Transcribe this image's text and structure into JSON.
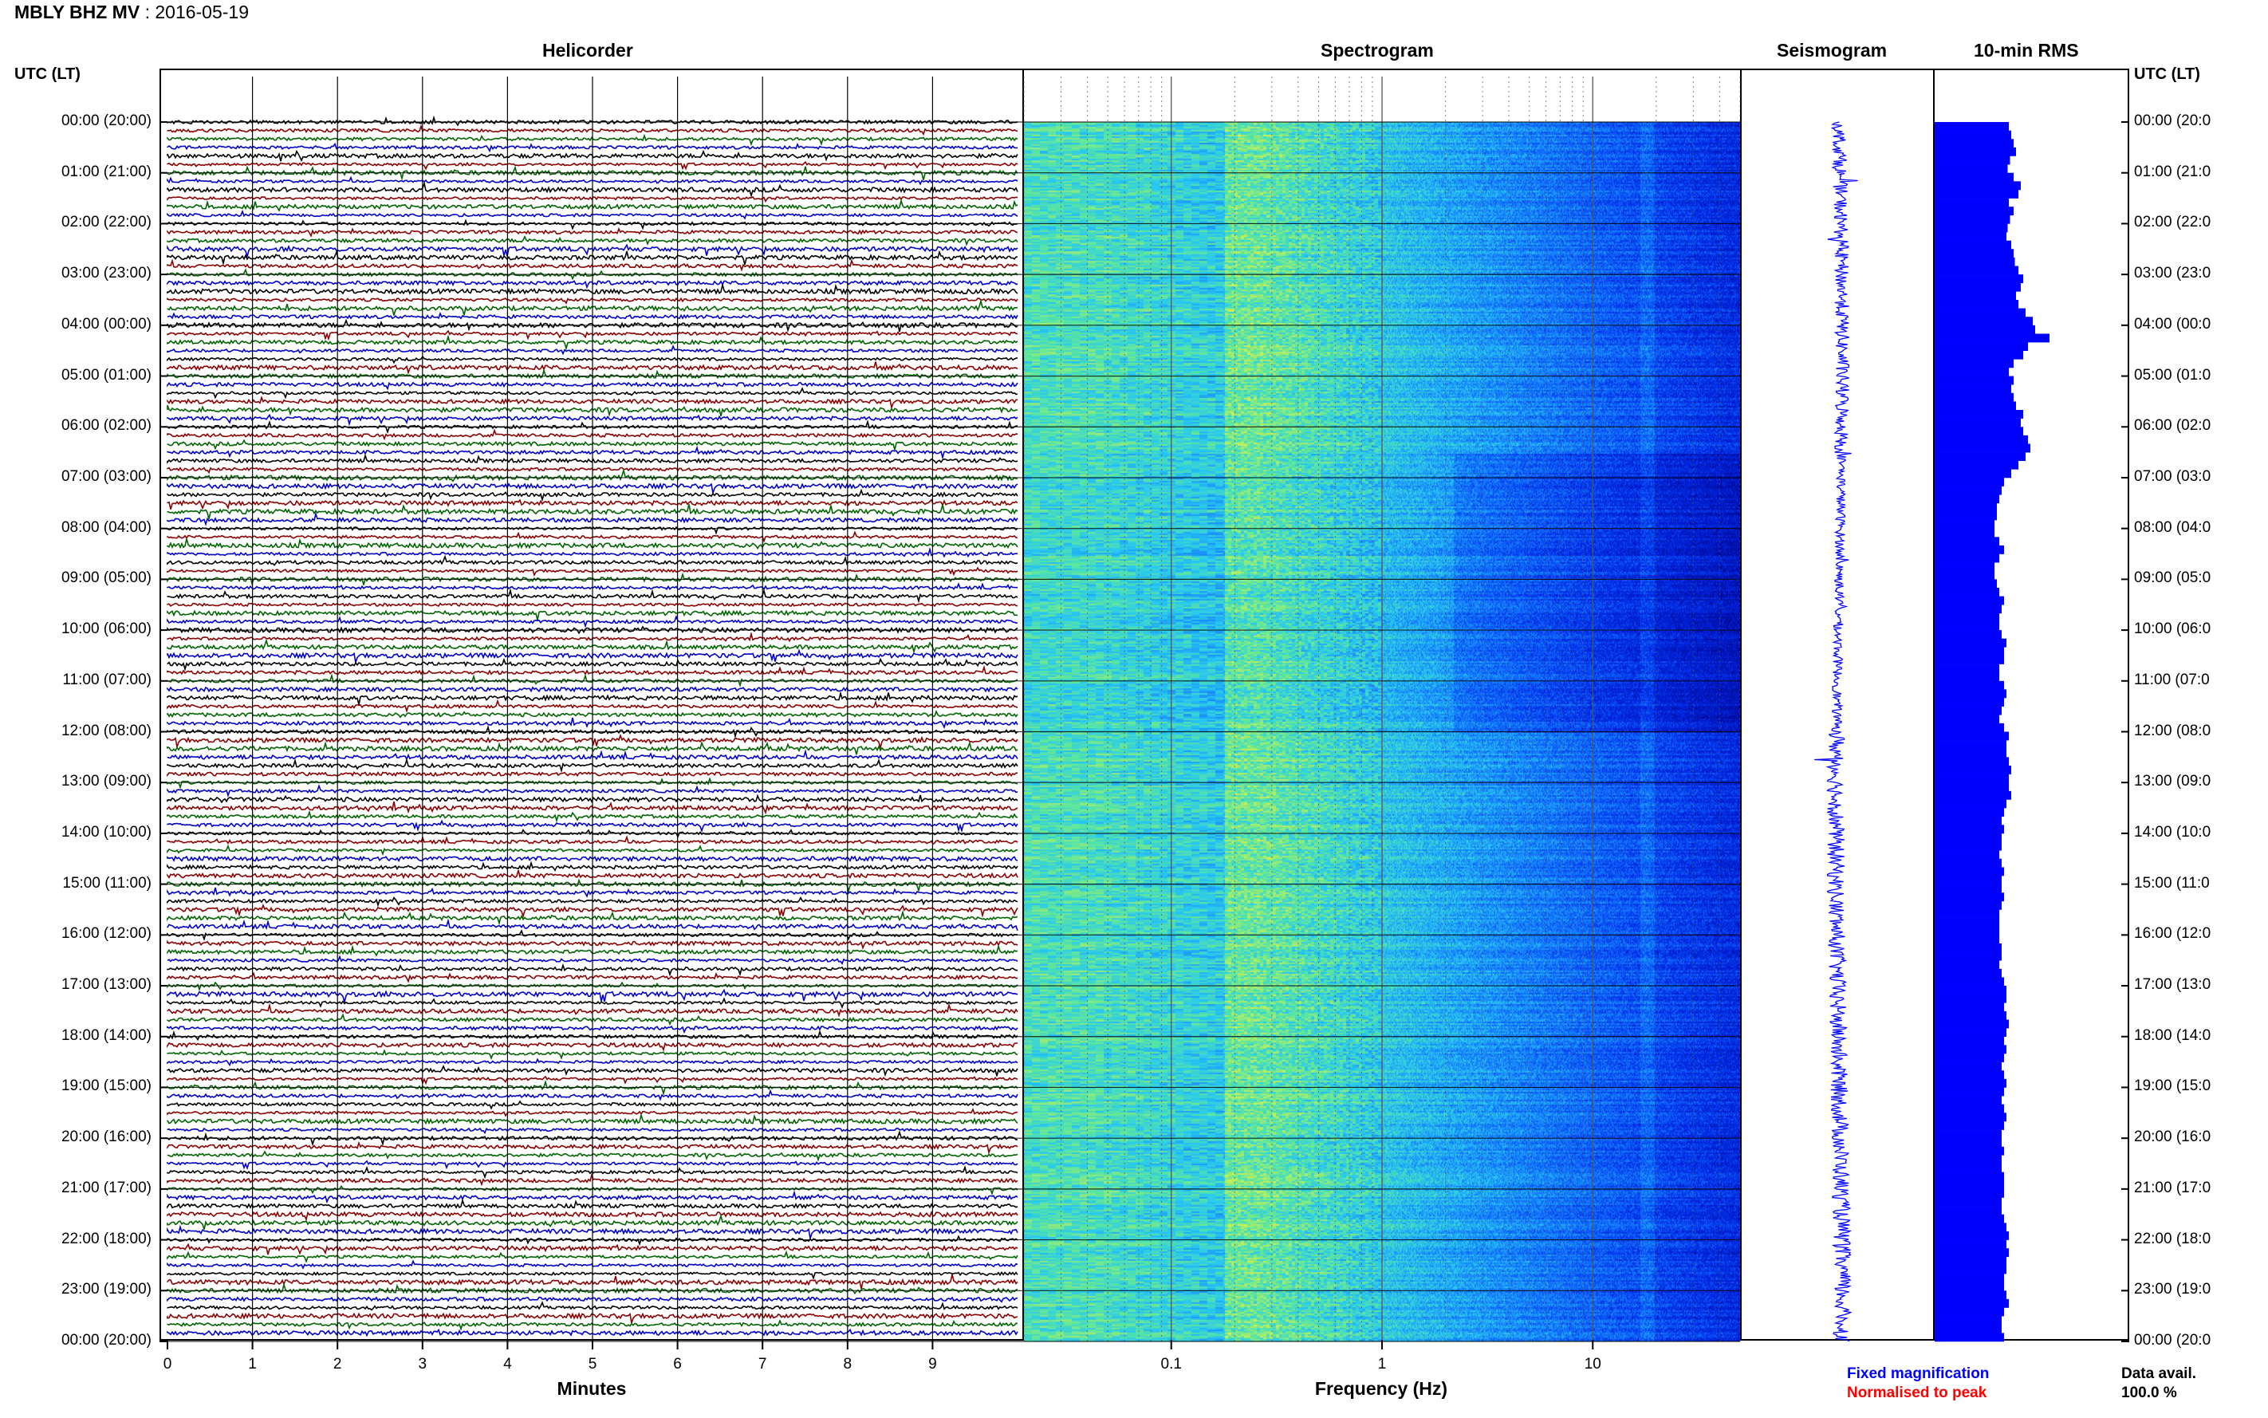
{
  "header": {
    "station": "MBLY BHZ MV",
    "date": ": 2016-05-19"
  },
  "titles": {
    "helicorder": "Helicorder",
    "spectrogram": "Spectrogram",
    "seismogram": "Seismogram",
    "rms": "10-min RMS"
  },
  "utc_label_left": "UTC (LT)",
  "utc_label_right": "UTC (LT)",
  "time_labels": [
    "00:00 (20:00)",
    "01:00 (21:00)",
    "02:00 (22:00)",
    "03:00 (23:00)",
    "04:00 (00:00)",
    "05:00 (01:00)",
    "06:00 (02:00)",
    "07:00 (03:00)",
    "08:00 (04:00)",
    "09:00 (05:00)",
    "10:00 (06:00)",
    "11:00 (07:00)",
    "12:00 (08:00)",
    "13:00 (09:00)",
    "14:00 (10:00)",
    "15:00 (11:00)",
    "16:00 (12:00)",
    "17:00 (13:00)",
    "18:00 (14:00)",
    "19:00 (15:00)",
    "20:00 (16:00)",
    "21:00 (17:00)",
    "22:00 (18:00)",
    "23:00 (19:00)",
    "00:00 (20:00)"
  ],
  "time_labels_right": [
    "00:00 (20:0",
    "01:00 (21:0",
    "02:00 (22:0",
    "03:00 (23:0",
    "04:00 (00:0",
    "05:00 (01:0",
    "06:00 (02:0",
    "07:00 (03:0",
    "08:00 (04:0",
    "09:00 (05:0",
    "10:00 (06:0",
    "11:00 (07:0",
    "12:00 (08:0",
    "13:00 (09:0",
    "14:00 (10:0",
    "15:00 (11:0",
    "16:00 (12:0",
    "17:00 (13:0",
    "18:00 (14:0",
    "19:00 (15:0",
    "20:00 (16:0",
    "21:00 (17:0",
    "22:00 (18:0",
    "23:00 (19:0",
    "00:00 (20:0"
  ],
  "helicorder_xticks": [
    "0",
    "1",
    "2",
    "3",
    "4",
    "5",
    "6",
    "7",
    "8",
    "9"
  ],
  "helicorder_xlabel": "Minutes",
  "spectrogram_xticks": [
    "0.1",
    "1",
    "10"
  ],
  "spectrogram_xlabel": "Frequency (Hz)",
  "legend": {
    "fixed": "Fixed magnification",
    "normalised": "Normalised to peak"
  },
  "data_avail": {
    "label": "Data avail.",
    "value": "100.0 %"
  },
  "colors": {
    "trace_black": "#000000",
    "trace_red": "#8b0000",
    "trace_green": "#006400",
    "trace_blue": "#0000cd",
    "fixed": "#0000ff",
    "normalised": "#ff0000",
    "rms_fill": "#0000ff",
    "seismo": "#0000ff"
  },
  "chart_data": [
    {
      "type": "line",
      "title": "Helicorder",
      "xlabel": "Minutes",
      "x_range": [
        0,
        10
      ],
      "y_range": [
        "00:00 (20:00)",
        "00:00 (20:00)"
      ],
      "rows_per_hour": 6,
      "trace_color_cycle": [
        "black",
        "red",
        "green",
        "blue"
      ]
    },
    {
      "type": "heatmap",
      "title": "Spectrogram",
      "xlabel": "Frequency (Hz)",
      "x_scale": "log",
      "x_ticks": [
        0.1,
        1,
        10
      ],
      "x_range": [
        0.02,
        50
      ],
      "colormap": "blue-cyan-yellow"
    },
    {
      "type": "line",
      "title": "Seismogram",
      "orientation": "vertical",
      "legend": [
        "Fixed magnification"
      ]
    },
    {
      "type": "bar",
      "title": "10-min RMS",
      "orientation": "horizontal",
      "relative_values": [
        0.62,
        0.64,
        0.66,
        0.68,
        0.63,
        0.61,
        0.66,
        0.72,
        0.7,
        0.62,
        0.66,
        0.63,
        0.61,
        0.6,
        0.64,
        0.66,
        0.67,
        0.7,
        0.74,
        0.72,
        0.68,
        0.7,
        0.76,
        0.82,
        0.84,
        0.96,
        0.78,
        0.74,
        0.66,
        0.62,
        0.66,
        0.64,
        0.66,
        0.68,
        0.74,
        0.72,
        0.74,
        0.78,
        0.8,
        0.76,
        0.7,
        0.64,
        0.58,
        0.56,
        0.54,
        0.52,
        0.52,
        0.5,
        0.5,
        0.54,
        0.58,
        0.54,
        0.5,
        0.5,
        0.52,
        0.54,
        0.58,
        0.56,
        0.54,
        0.54,
        0.56,
        0.6,
        0.58,
        0.58,
        0.54,
        0.54,
        0.58,
        0.6,
        0.58,
        0.56,
        0.54,
        0.58,
        0.62,
        0.6,
        0.6,
        0.62,
        0.64,
        0.62,
        0.62,
        0.64,
        0.6,
        0.58,
        0.56,
        0.58,
        0.56,
        0.56,
        0.54,
        0.56,
        0.58,
        0.56,
        0.56,
        0.58,
        0.56,
        0.54,
        0.54,
        0.54,
        0.54,
        0.56,
        0.56,
        0.54,
        0.56,
        0.58,
        0.6,
        0.6,
        0.58,
        0.6,
        0.62,
        0.6,
        0.58,
        0.6,
        0.58,
        0.56,
        0.58,
        0.6,
        0.58,
        0.56,
        0.58,
        0.6,
        0.58,
        0.56,
        0.56,
        0.58,
        0.56,
        0.56,
        0.58,
        0.58,
        0.58,
        0.56,
        0.56,
        0.58,
        0.6,
        0.62,
        0.6,
        0.62,
        0.6,
        0.6,
        0.58,
        0.58,
        0.6,
        0.62,
        0.58,
        0.56,
        0.56,
        0.58
      ]
    }
  ]
}
